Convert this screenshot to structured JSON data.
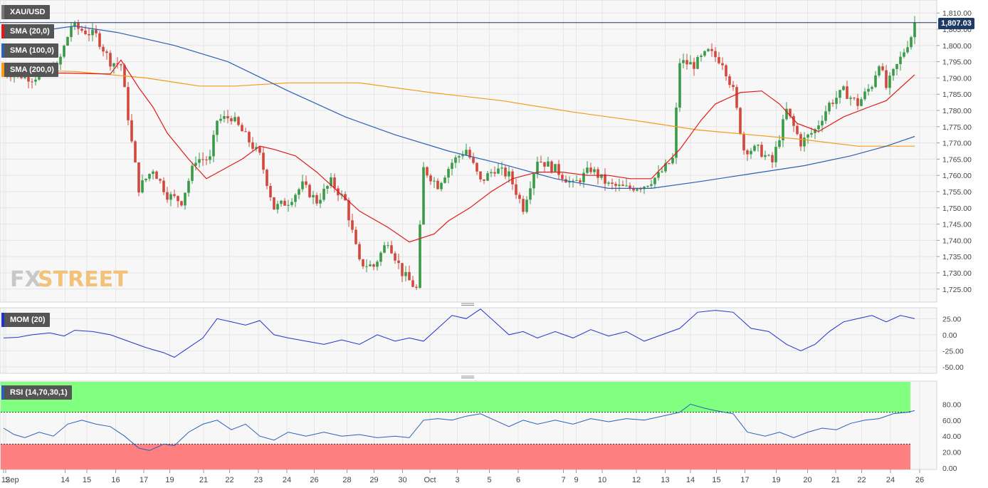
{
  "instrument": "XAU/USD",
  "price_tag": "1,807.03",
  "watermark": {
    "fx": "FX",
    "street": "STREET"
  },
  "indicators": [
    {
      "label": "SMA (20,0)",
      "color": "#e01a1a"
    },
    {
      "label": "SMA (100,0)",
      "color": "#2c5fb5"
    },
    {
      "label": "SMA (200,0)",
      "color": "#f59a1a"
    }
  ],
  "mom_label": "MOM (20)",
  "rsi_label": "RSI (14,70,30,1)",
  "colors": {
    "up": "#3a9a48",
    "down": "#d2483c",
    "sma20": "#e01a1a",
    "sma100": "#2c5fb5",
    "sma200": "#f59a1a",
    "mom": "#2233cc",
    "rsi": "#2c5fb5",
    "overbought": "#80ff80",
    "oversold": "#ff8080",
    "tag": "#1e3a66"
  },
  "chart_data": [
    {
      "type": "candlestick",
      "name": "price",
      "ylim": [
        1721,
        1814
      ],
      "yticks": [
        1725,
        1730,
        1735,
        1740,
        1745,
        1750,
        1755,
        1760,
        1765,
        1770,
        1775,
        1780,
        1785,
        1790,
        1795,
        1800,
        1805,
        1810
      ],
      "ytick_labels": [
        "1,725.00",
        "1,730.00",
        "1,735.00",
        "1,740.00",
        "1,745.00",
        "1,750.00",
        "1,755.00",
        "1,760.00",
        "1,765.00",
        "1,770.00",
        "1,775.00",
        "1,780.00",
        "1,785.00",
        "1,790.00",
        "1,795.00",
        "1,800.00",
        "1,805.00",
        "1,810.00"
      ],
      "last_price": 1807.03,
      "x_labels": [
        "Sep",
        "12",
        "14",
        "15",
        "16",
        "17",
        "19",
        "21",
        "22",
        "23",
        "24",
        "26",
        "28",
        "29",
        "30",
        "Oct",
        "3",
        "5",
        "6",
        "7",
        "9",
        "10",
        "12",
        "13",
        "14",
        "15",
        "17",
        "19",
        "20",
        "21",
        "22",
        "24",
        "26"
      ],
      "x_label_pos": [
        0.0,
        0.6,
        17.3,
        23.4,
        31.5,
        39.4,
        46.7,
        56.2,
        63.5,
        71.6,
        79.6,
        87.3,
        96.5,
        104.1,
        112.1,
        119.8,
        127.5,
        136.5,
        144.6,
        157.3,
        160.9,
        168.2,
        177.8,
        185.9,
        193.0,
        200.3,
        208.3,
        217.1,
        225.9,
        233.8,
        241.1,
        249.2,
        257.4
      ],
      "sma20": [
        [
          0,
          1791.5
        ],
        [
          17,
          1791.5
        ],
        [
          30,
          1791.2
        ],
        [
          33,
          1795.5
        ],
        [
          38,
          1787
        ],
        [
          42,
          1781
        ],
        [
          46,
          1773
        ],
        [
          52,
          1765
        ],
        [
          57,
          1759
        ],
        [
          62,
          1762
        ],
        [
          67,
          1765
        ],
        [
          72,
          1769
        ],
        [
          76,
          1768
        ],
        [
          82,
          1766
        ],
        [
          88,
          1761
        ],
        [
          95,
          1754
        ],
        [
          100,
          1749
        ],
        [
          108,
          1744
        ],
        [
          114,
          1739.5
        ],
        [
          121,
          1742
        ],
        [
          125,
          1746
        ],
        [
          131,
          1750
        ],
        [
          137,
          1755
        ],
        [
          143,
          1759
        ],
        [
          150,
          1761
        ],
        [
          157,
          1761
        ],
        [
          164,
          1760
        ],
        [
          170,
          1760
        ],
        [
          176,
          1759
        ],
        [
          182,
          1759
        ],
        [
          190,
          1768
        ],
        [
          196,
          1777
        ],
        [
          200,
          1782
        ],
        [
          207,
          1785.5
        ],
        [
          213,
          1786
        ],
        [
          218,
          1782
        ],
        [
          223,
          1776
        ],
        [
          229,
          1773.5
        ],
        [
          236,
          1778
        ],
        [
          243,
          1781
        ],
        [
          248,
          1783
        ],
        [
          252,
          1787
        ],
        [
          256,
          1791
        ]
      ],
      "sma100": [
        [
          0,
          1803
        ],
        [
          20,
          1806
        ],
        [
          32,
          1804
        ],
        [
          48,
          1800
        ],
        [
          63,
          1795
        ],
        [
          80,
          1786
        ],
        [
          96,
          1778
        ],
        [
          110,
          1772.5
        ],
        [
          125,
          1767.5
        ],
        [
          140,
          1763.5
        ],
        [
          155,
          1759
        ],
        [
          170,
          1756
        ],
        [
          182,
          1756
        ],
        [
          195,
          1758
        ],
        [
          210,
          1760.5
        ],
        [
          225,
          1763
        ],
        [
          238,
          1766
        ],
        [
          248,
          1769
        ],
        [
          256,
          1772
        ]
      ],
      "sma200": [
        [
          0,
          1792.5
        ],
        [
          20,
          1792
        ],
        [
          40,
          1790
        ],
        [
          55,
          1787.5
        ],
        [
          65,
          1787.5
        ],
        [
          80,
          1788.5
        ],
        [
          100,
          1788.5
        ],
        [
          120,
          1785.5
        ],
        [
          140,
          1783
        ],
        [
          160,
          1779.5
        ],
        [
          180,
          1776.5
        ],
        [
          195,
          1774
        ],
        [
          210,
          1772.5
        ],
        [
          225,
          1771
        ],
        [
          240,
          1769
        ],
        [
          256,
          1769
        ]
      ],
      "candles_hint": "synthetic path through visible swing points"
    },
    {
      "type": "line",
      "name": "MOM (20)",
      "ylim": [
        -60,
        42
      ],
      "yticks": [
        -50,
        -25,
        0,
        25
      ],
      "ytick_labels": [
        "-50.00",
        "-25.00",
        "0.00",
        "25.00"
      ],
      "values": [
        [
          0,
          -5
        ],
        [
          4,
          -4
        ],
        [
          8,
          0
        ],
        [
          13,
          3
        ],
        [
          17,
          -2
        ],
        [
          20,
          7
        ],
        [
          25,
          5
        ],
        [
          30,
          0
        ],
        [
          35,
          -10
        ],
        [
          40,
          -20
        ],
        [
          45,
          -28
        ],
        [
          48,
          -35
        ],
        [
          52,
          -20
        ],
        [
          56,
          -5
        ],
        [
          60,
          25
        ],
        [
          64,
          20
        ],
        [
          68,
          15
        ],
        [
          72,
          22
        ],
        [
          76,
          0
        ],
        [
          80,
          -5
        ],
        [
          85,
          -10
        ],
        [
          90,
          -15
        ],
        [
          95,
          -8
        ],
        [
          100,
          -15
        ],
        [
          105,
          0
        ],
        [
          110,
          -10
        ],
        [
          114,
          -5
        ],
        [
          118,
          -10
        ],
        [
          122,
          10
        ],
        [
          126,
          30
        ],
        [
          130,
          25
        ],
        [
          134,
          40
        ],
        [
          138,
          20
        ],
        [
          142,
          0
        ],
        [
          146,
          5
        ],
        [
          150,
          -5
        ],
        [
          155,
          5
        ],
        [
          160,
          -5
        ],
        [
          165,
          8
        ],
        [
          170,
          -2
        ],
        [
          175,
          5
        ],
        [
          180,
          -10
        ],
        [
          185,
          0
        ],
        [
          190,
          10
        ],
        [
          195,
          35
        ],
        [
          200,
          38
        ],
        [
          205,
          35
        ],
        [
          210,
          10
        ],
        [
          215,
          5
        ],
        [
          220,
          -15
        ],
        [
          224,
          -25
        ],
        [
          228,
          -15
        ],
        [
          232,
          5
        ],
        [
          236,
          20
        ],
        [
          240,
          25
        ],
        [
          244,
          30
        ],
        [
          248,
          20
        ],
        [
          252,
          30
        ],
        [
          256,
          25
        ]
      ]
    },
    {
      "type": "line",
      "name": "RSI (14,70,30,1)",
      "ylim": [
        0,
        100
      ],
      "yticks": [
        0,
        20,
        40,
        60,
        80
      ],
      "ytick_labels": [
        "0.00",
        "20.00",
        "40.00",
        "60.00",
        "80.00"
      ],
      "overbought": 70,
      "oversold": 30,
      "values": [
        [
          0,
          50
        ],
        [
          3,
          42
        ],
        [
          6,
          38
        ],
        [
          10,
          45
        ],
        [
          14,
          40
        ],
        [
          18,
          55
        ],
        [
          22,
          60
        ],
        [
          26,
          55
        ],
        [
          30,
          52
        ],
        [
          34,
          40
        ],
        [
          38,
          25
        ],
        [
          41,
          22
        ],
        [
          45,
          30
        ],
        [
          48,
          28
        ],
        [
          52,
          45
        ],
        [
          56,
          55
        ],
        [
          60,
          60
        ],
        [
          64,
          48
        ],
        [
          68,
          55
        ],
        [
          72,
          40
        ],
        [
          76,
          35
        ],
        [
          80,
          45
        ],
        [
          85,
          40
        ],
        [
          90,
          45
        ],
        [
          95,
          40
        ],
        [
          100,
          42
        ],
        [
          105,
          38
        ],
        [
          110,
          40
        ],
        [
          114,
          38
        ],
        [
          118,
          60
        ],
        [
          122,
          62
        ],
        [
          126,
          60
        ],
        [
          130,
          65
        ],
        [
          134,
          68
        ],
        [
          138,
          60
        ],
        [
          142,
          52
        ],
        [
          146,
          60
        ],
        [
          150,
          55
        ],
        [
          155,
          60
        ],
        [
          160,
          55
        ],
        [
          165,
          62
        ],
        [
          170,
          58
        ],
        [
          175,
          62
        ],
        [
          180,
          60
        ],
        [
          185,
          65
        ],
        [
          190,
          70
        ],
        [
          193,
          80
        ],
        [
          197,
          75
        ],
        [
          200,
          72
        ],
        [
          205,
          68
        ],
        [
          209,
          45
        ],
        [
          214,
          40
        ],
        [
          218,
          45
        ],
        [
          222,
          38
        ],
        [
          226,
          45
        ],
        [
          230,
          50
        ],
        [
          234,
          48
        ],
        [
          238,
          56
        ],
        [
          242,
          60
        ],
        [
          246,
          62
        ],
        [
          250,
          68
        ],
        [
          254,
          70
        ],
        [
          256,
          72
        ]
      ]
    }
  ]
}
